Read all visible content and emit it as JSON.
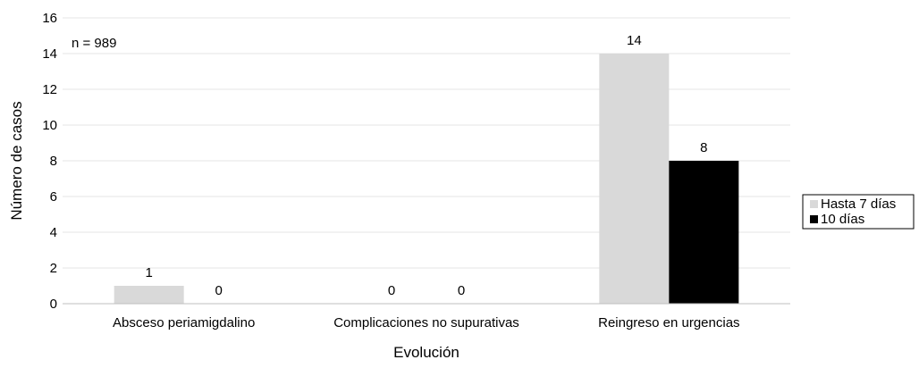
{
  "chart_data": {
    "type": "bar",
    "annotation": "n = 989",
    "xlabel": "Evolución",
    "ylabel": "Número de casos",
    "ylim": [
      0,
      16
    ],
    "yticks": [
      0,
      2,
      4,
      6,
      8,
      10,
      12,
      14,
      16
    ],
    "grid": true,
    "legend_position": "right",
    "categories": [
      "Absceso periamigdalino",
      "Complicaciones no supurativas",
      "Reingreso en urgencias"
    ],
    "series": [
      {
        "name": "Hasta 7 días",
        "values": [
          1,
          0,
          14
        ],
        "color": "#d9d9d9"
      },
      {
        "name": "10 días",
        "values": [
          0,
          0,
          8
        ],
        "color": "#000000"
      }
    ]
  }
}
